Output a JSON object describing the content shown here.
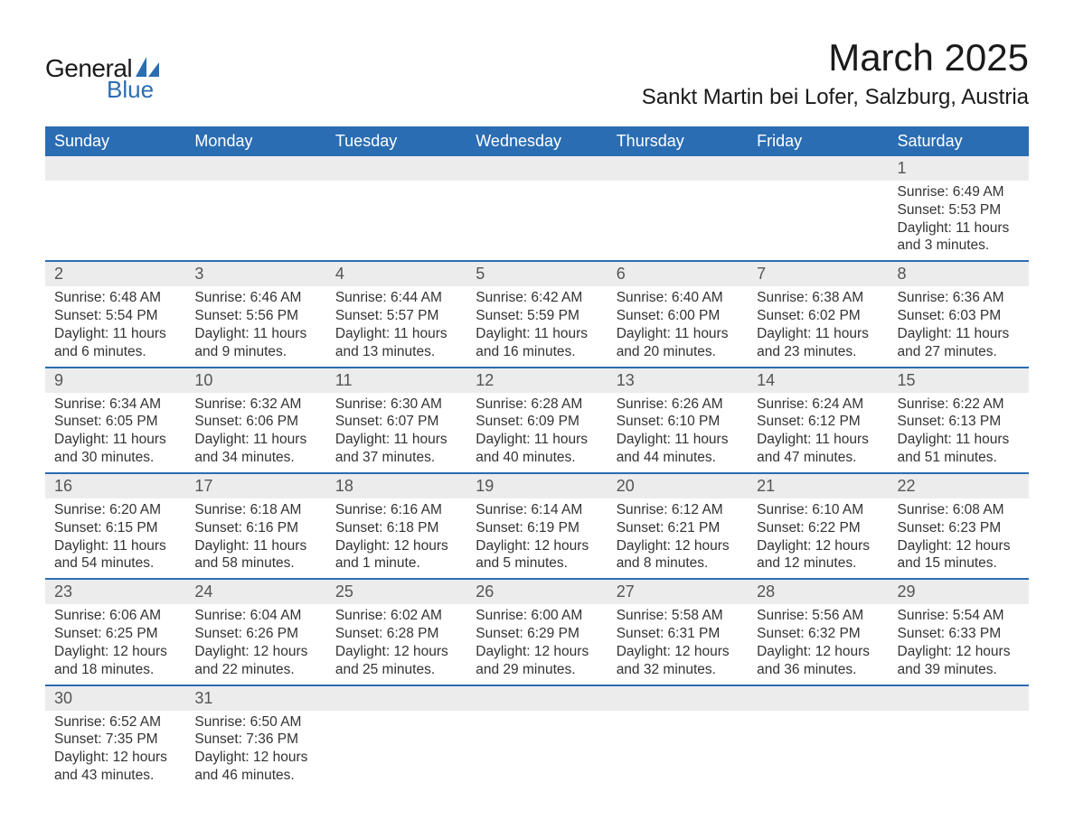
{
  "brand": {
    "line1": "General",
    "line2": "Blue",
    "accent_color": "#2a6db3"
  },
  "title": "March 2025",
  "location": "Sankt Martin bei Lofer, Salzburg, Austria",
  "colors": {
    "header_bg": "#2a6db3",
    "header_text": "#ffffff",
    "daynum_bg": "#ececec",
    "daynum_text": "#555555",
    "body_text": "#333333",
    "rule": "#2a6db3"
  },
  "typography": {
    "title_fontsize": 42,
    "location_fontsize": 24,
    "header_fontsize": 18,
    "daynum_fontsize": 18,
    "body_fontsize": 15.5
  },
  "layout": {
    "columns": 7,
    "weeks": 6
  },
  "weekdays": [
    "Sunday",
    "Monday",
    "Tuesday",
    "Wednesday",
    "Thursday",
    "Friday",
    "Saturday"
  ],
  "weeks": [
    [
      null,
      null,
      null,
      null,
      null,
      null,
      {
        "n": "1",
        "sunrise": "Sunrise: 6:49 AM",
        "sunset": "Sunset: 5:53 PM",
        "dl1": "Daylight: 11 hours",
        "dl2": "and 3 minutes."
      }
    ],
    [
      {
        "n": "2",
        "sunrise": "Sunrise: 6:48 AM",
        "sunset": "Sunset: 5:54 PM",
        "dl1": "Daylight: 11 hours",
        "dl2": "and 6 minutes."
      },
      {
        "n": "3",
        "sunrise": "Sunrise: 6:46 AM",
        "sunset": "Sunset: 5:56 PM",
        "dl1": "Daylight: 11 hours",
        "dl2": "and 9 minutes."
      },
      {
        "n": "4",
        "sunrise": "Sunrise: 6:44 AM",
        "sunset": "Sunset: 5:57 PM",
        "dl1": "Daylight: 11 hours",
        "dl2": "and 13 minutes."
      },
      {
        "n": "5",
        "sunrise": "Sunrise: 6:42 AM",
        "sunset": "Sunset: 5:59 PM",
        "dl1": "Daylight: 11 hours",
        "dl2": "and 16 minutes."
      },
      {
        "n": "6",
        "sunrise": "Sunrise: 6:40 AM",
        "sunset": "Sunset: 6:00 PM",
        "dl1": "Daylight: 11 hours",
        "dl2": "and 20 minutes."
      },
      {
        "n": "7",
        "sunrise": "Sunrise: 6:38 AM",
        "sunset": "Sunset: 6:02 PM",
        "dl1": "Daylight: 11 hours",
        "dl2": "and 23 minutes."
      },
      {
        "n": "8",
        "sunrise": "Sunrise: 6:36 AM",
        "sunset": "Sunset: 6:03 PM",
        "dl1": "Daylight: 11 hours",
        "dl2": "and 27 minutes."
      }
    ],
    [
      {
        "n": "9",
        "sunrise": "Sunrise: 6:34 AM",
        "sunset": "Sunset: 6:05 PM",
        "dl1": "Daylight: 11 hours",
        "dl2": "and 30 minutes."
      },
      {
        "n": "10",
        "sunrise": "Sunrise: 6:32 AM",
        "sunset": "Sunset: 6:06 PM",
        "dl1": "Daylight: 11 hours",
        "dl2": "and 34 minutes."
      },
      {
        "n": "11",
        "sunrise": "Sunrise: 6:30 AM",
        "sunset": "Sunset: 6:07 PM",
        "dl1": "Daylight: 11 hours",
        "dl2": "and 37 minutes."
      },
      {
        "n": "12",
        "sunrise": "Sunrise: 6:28 AM",
        "sunset": "Sunset: 6:09 PM",
        "dl1": "Daylight: 11 hours",
        "dl2": "and 40 minutes."
      },
      {
        "n": "13",
        "sunrise": "Sunrise: 6:26 AM",
        "sunset": "Sunset: 6:10 PM",
        "dl1": "Daylight: 11 hours",
        "dl2": "and 44 minutes."
      },
      {
        "n": "14",
        "sunrise": "Sunrise: 6:24 AM",
        "sunset": "Sunset: 6:12 PM",
        "dl1": "Daylight: 11 hours",
        "dl2": "and 47 minutes."
      },
      {
        "n": "15",
        "sunrise": "Sunrise: 6:22 AM",
        "sunset": "Sunset: 6:13 PM",
        "dl1": "Daylight: 11 hours",
        "dl2": "and 51 minutes."
      }
    ],
    [
      {
        "n": "16",
        "sunrise": "Sunrise: 6:20 AM",
        "sunset": "Sunset: 6:15 PM",
        "dl1": "Daylight: 11 hours",
        "dl2": "and 54 minutes."
      },
      {
        "n": "17",
        "sunrise": "Sunrise: 6:18 AM",
        "sunset": "Sunset: 6:16 PM",
        "dl1": "Daylight: 11 hours",
        "dl2": "and 58 minutes."
      },
      {
        "n": "18",
        "sunrise": "Sunrise: 6:16 AM",
        "sunset": "Sunset: 6:18 PM",
        "dl1": "Daylight: 12 hours",
        "dl2": "and 1 minute."
      },
      {
        "n": "19",
        "sunrise": "Sunrise: 6:14 AM",
        "sunset": "Sunset: 6:19 PM",
        "dl1": "Daylight: 12 hours",
        "dl2": "and 5 minutes."
      },
      {
        "n": "20",
        "sunrise": "Sunrise: 6:12 AM",
        "sunset": "Sunset: 6:21 PM",
        "dl1": "Daylight: 12 hours",
        "dl2": "and 8 minutes."
      },
      {
        "n": "21",
        "sunrise": "Sunrise: 6:10 AM",
        "sunset": "Sunset: 6:22 PM",
        "dl1": "Daylight: 12 hours",
        "dl2": "and 12 minutes."
      },
      {
        "n": "22",
        "sunrise": "Sunrise: 6:08 AM",
        "sunset": "Sunset: 6:23 PM",
        "dl1": "Daylight: 12 hours",
        "dl2": "and 15 minutes."
      }
    ],
    [
      {
        "n": "23",
        "sunrise": "Sunrise: 6:06 AM",
        "sunset": "Sunset: 6:25 PM",
        "dl1": "Daylight: 12 hours",
        "dl2": "and 18 minutes."
      },
      {
        "n": "24",
        "sunrise": "Sunrise: 6:04 AM",
        "sunset": "Sunset: 6:26 PM",
        "dl1": "Daylight: 12 hours",
        "dl2": "and 22 minutes."
      },
      {
        "n": "25",
        "sunrise": "Sunrise: 6:02 AM",
        "sunset": "Sunset: 6:28 PM",
        "dl1": "Daylight: 12 hours",
        "dl2": "and 25 minutes."
      },
      {
        "n": "26",
        "sunrise": "Sunrise: 6:00 AM",
        "sunset": "Sunset: 6:29 PM",
        "dl1": "Daylight: 12 hours",
        "dl2": "and 29 minutes."
      },
      {
        "n": "27",
        "sunrise": "Sunrise: 5:58 AM",
        "sunset": "Sunset: 6:31 PM",
        "dl1": "Daylight: 12 hours",
        "dl2": "and 32 minutes."
      },
      {
        "n": "28",
        "sunrise": "Sunrise: 5:56 AM",
        "sunset": "Sunset: 6:32 PM",
        "dl1": "Daylight: 12 hours",
        "dl2": "and 36 minutes."
      },
      {
        "n": "29",
        "sunrise": "Sunrise: 5:54 AM",
        "sunset": "Sunset: 6:33 PM",
        "dl1": "Daylight: 12 hours",
        "dl2": "and 39 minutes."
      }
    ],
    [
      {
        "n": "30",
        "sunrise": "Sunrise: 6:52 AM",
        "sunset": "Sunset: 7:35 PM",
        "dl1": "Daylight: 12 hours",
        "dl2": "and 43 minutes."
      },
      {
        "n": "31",
        "sunrise": "Sunrise: 6:50 AM",
        "sunset": "Sunset: 7:36 PM",
        "dl1": "Daylight: 12 hours",
        "dl2": "and 46 minutes."
      },
      null,
      null,
      null,
      null,
      null
    ]
  ]
}
